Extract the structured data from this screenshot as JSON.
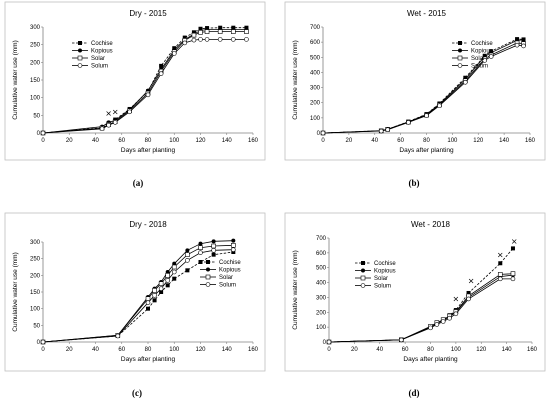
{
  "chart_data": [
    {
      "type": "line",
      "title": "Dry - 2015",
      "caption": "(a)",
      "xlabel": "Days after planting",
      "ylabel": "Cumulative water use (mm)",
      "xlim": [
        0,
        160
      ],
      "ylim": [
        0,
        300
      ],
      "xticks": [
        0,
        20,
        40,
        60,
        80,
        100,
        120,
        140,
        160
      ],
      "yticks": [
        0,
        50,
        100,
        150,
        200,
        250,
        300
      ],
      "legend_position": "top-left",
      "series": [
        {
          "name": "Cochise",
          "marker": "square-filled",
          "dash": "dashed",
          "x": [
            0,
            45,
            50,
            55,
            66,
            80,
            90,
            100,
            108,
            115,
            120,
            125,
            135,
            145,
            155
          ],
          "y": [
            0,
            15,
            28,
            38,
            68,
            118,
            190,
            240,
            270,
            285,
            295,
            297,
            298,
            298,
            298
          ]
        },
        {
          "name": "Kopious",
          "marker": "circle-filled",
          "dash": "solid",
          "x": [
            0,
            45,
            50,
            55,
            66,
            80,
            90,
            100,
            108,
            115,
            120,
            125,
            135,
            145,
            155
          ],
          "y": [
            0,
            18,
            30,
            35,
            66,
            120,
            180,
            235,
            265,
            280,
            290,
            293,
            293,
            293,
            293
          ]
        },
        {
          "name": "Solar",
          "marker": "square-open",
          "dash": "solid",
          "x": [
            0,
            45,
            50,
            55,
            66,
            80,
            90,
            100,
            108,
            115,
            120,
            125,
            135,
            145,
            155
          ],
          "y": [
            0,
            14,
            24,
            32,
            63,
            113,
            175,
            230,
            262,
            277,
            285,
            287,
            287,
            287,
            287
          ]
        },
        {
          "name": "Solum",
          "marker": "circle-open",
          "dash": "solid",
          "x": [
            0,
            45,
            50,
            55,
            66,
            80,
            90,
            100,
            108,
            115,
            120,
            125,
            135,
            145,
            155
          ],
          "y": [
            0,
            12,
            22,
            30,
            60,
            108,
            168,
            225,
            255,
            263,
            265,
            265,
            265,
            265,
            265
          ]
        }
      ],
      "annotations": [
        {
          "text": "×",
          "x": 50,
          "y": 55
        },
        {
          "text": "×",
          "x": 55,
          "y": 60
        }
      ]
    },
    {
      "type": "line",
      "title": "Wet - 2015",
      "caption": "(b)",
      "xlabel": "Days after planting",
      "ylabel": "Cumulative water use (mm)",
      "xlim": [
        0,
        160
      ],
      "ylim": [
        0,
        700
      ],
      "xticks": [
        0,
        20,
        40,
        60,
        80,
        100,
        120,
        140,
        160
      ],
      "yticks": [
        0,
        100,
        200,
        300,
        400,
        500,
        600,
        700
      ],
      "legend_position": "top-right",
      "series": [
        {
          "name": "Cochise",
          "marker": "square-filled",
          "dash": "dashed",
          "x": [
            0,
            45,
            50,
            66,
            80,
            90,
            110,
            125,
            130,
            150,
            155
          ],
          "y": [
            0,
            15,
            25,
            75,
            125,
            195,
            365,
            510,
            540,
            620,
            618
          ]
        },
        {
          "name": "Kopious",
          "marker": "circle-filled",
          "dash": "solid",
          "x": [
            0,
            45,
            50,
            66,
            80,
            90,
            110,
            125,
            130,
            150,
            155
          ],
          "y": [
            0,
            15,
            25,
            73,
            122,
            190,
            355,
            505,
            530,
            612,
            615
          ]
        },
        {
          "name": "Solar",
          "marker": "square-open",
          "dash": "solid",
          "x": [
            0,
            45,
            50,
            66,
            80,
            90,
            110,
            125,
            130,
            150,
            155
          ],
          "y": [
            0,
            14,
            24,
            72,
            118,
            185,
            345,
            490,
            515,
            595,
            590
          ]
        },
        {
          "name": "Solum",
          "marker": "circle-open",
          "dash": "solid",
          "x": [
            0,
            45,
            50,
            66,
            80,
            90,
            110,
            125,
            130,
            150,
            155
          ],
          "y": [
            0,
            13,
            22,
            70,
            115,
            180,
            335,
            480,
            505,
            580,
            575
          ]
        }
      ]
    },
    {
      "type": "line",
      "title": "Dry - 2018",
      "caption": "(c)",
      "xlabel": "Days after planting",
      "ylabel": "Cumulative water use (mm)",
      "xlim": [
        0,
        160
      ],
      "ylim": [
        0,
        300
      ],
      "xticks": [
        0,
        20,
        40,
        60,
        80,
        100,
        120,
        140,
        160
      ],
      "yticks": [
        0,
        50,
        100,
        150,
        200,
        250,
        300
      ],
      "legend_position": "right",
      "series": [
        {
          "name": "Cochise",
          "marker": "square-filled",
          "dash": "dashed",
          "x": [
            0,
            57,
            80,
            85,
            90,
            95,
            100,
            110,
            120,
            130,
            145
          ],
          "y": [
            0,
            18,
            100,
            125,
            150,
            170,
            190,
            215,
            240,
            262,
            270
          ]
        },
        {
          "name": "Kopious",
          "marker": "circle-filled",
          "dash": "solid",
          "x": [
            0,
            57,
            80,
            85,
            90,
            95,
            100,
            110,
            120,
            130,
            145
          ],
          "y": [
            0,
            20,
            135,
            160,
            180,
            210,
            235,
            275,
            295,
            302,
            304
          ]
        },
        {
          "name": "Solar",
          "marker": "square-open",
          "dash": "solid",
          "x": [
            0,
            57,
            80,
            85,
            90,
            95,
            100,
            110,
            120,
            130,
            145
          ],
          "y": [
            0,
            20,
            130,
            155,
            175,
            200,
            225,
            262,
            283,
            288,
            290
          ]
        },
        {
          "name": "Solum",
          "marker": "circle-open",
          "dash": "solid",
          "x": [
            0,
            57,
            80,
            85,
            90,
            95,
            100,
            110,
            120,
            130,
            145
          ],
          "y": [
            0,
            18,
            118,
            140,
            160,
            185,
            210,
            245,
            268,
            275,
            277
          ]
        }
      ]
    },
    {
      "type": "line",
      "title": "Wet - 2018",
      "caption": "(d)",
      "xlabel": "Days after planting",
      "ylabel": "Cumulative water use (mm)",
      "xlim": [
        0,
        160
      ],
      "ylim": [
        0,
        700
      ],
      "xticks": [
        0,
        20,
        40,
        60,
        80,
        100,
        120,
        140,
        160
      ],
      "yticks": [
        0,
        100,
        200,
        300,
        400,
        500,
        600,
        700
      ],
      "legend_position": "top-left",
      "series": [
        {
          "name": "Cochise",
          "marker": "square-filled",
          "dash": "dashed",
          "x": [
            0,
            57,
            80,
            85,
            90,
            95,
            100,
            110,
            135,
            145
          ],
          "y": [
            0,
            15,
            100,
            125,
            150,
            180,
            215,
            330,
            530,
            630
          ]
        },
        {
          "name": "Kopious",
          "marker": "circle-filled",
          "dash": "solid",
          "x": [
            0,
            57,
            80,
            85,
            90,
            95,
            100,
            110,
            135,
            145
          ],
          "y": [
            0,
            15,
            100,
            125,
            145,
            170,
            200,
            300,
            440,
            450
          ]
        },
        {
          "name": "Solar",
          "marker": "square-open",
          "dash": "solid",
          "x": [
            0,
            57,
            80,
            85,
            90,
            95,
            100,
            110,
            135,
            145
          ],
          "y": [
            0,
            15,
            105,
            130,
            150,
            175,
            205,
            310,
            455,
            460
          ]
        },
        {
          "name": "Solum",
          "marker": "circle-open",
          "dash": "solid",
          "x": [
            0,
            57,
            80,
            85,
            90,
            95,
            100,
            110,
            135,
            145
          ],
          "y": [
            0,
            14,
            95,
            118,
            138,
            160,
            190,
            290,
            425,
            425
          ]
        }
      ],
      "annotations": [
        {
          "text": "×",
          "x": 100,
          "y": 290
        },
        {
          "text": "×",
          "x": 112,
          "y": 410
        },
        {
          "text": "×",
          "x": 135,
          "y": 585
        },
        {
          "text": "×",
          "x": 146,
          "y": 675
        }
      ]
    }
  ]
}
